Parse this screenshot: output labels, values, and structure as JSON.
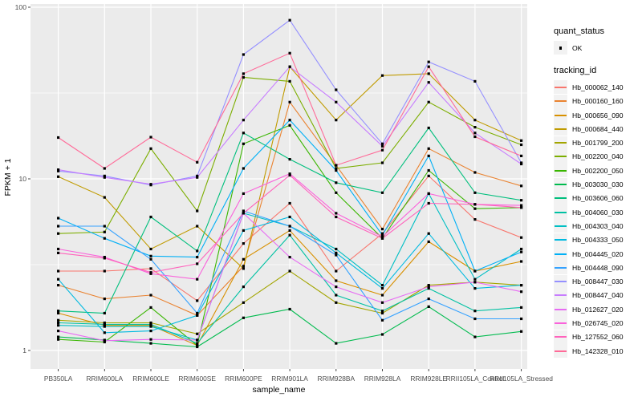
{
  "figure": {
    "background": "#FFFFFF",
    "panel_background": "#EBEBEB",
    "gridline_color": "#FFFFFF",
    "axis_text_color": "#4D4D4D",
    "axis_title_color": "#000000",
    "tick_mark_color": "#333333",
    "point_color": "#000000",
    "legend_key_background": "#F2F2F2"
  },
  "axes": {
    "x_title": "sample_name",
    "y_title": "FPKM + 1",
    "y_tick_labels": [
      "1",
      "10",
      "100"
    ],
    "y_tick_values": [
      1,
      10,
      100
    ],
    "y_minor_values": [
      3.1623,
      31.623
    ]
  },
  "legend": {
    "quant_status_title": "quant_status",
    "quant_status_items": [
      {
        "label": "OK"
      }
    ],
    "tracking_id_title": "tracking_id"
  },
  "chart_data": {
    "type": "line",
    "title": "",
    "xlabel": "sample_name",
    "ylabel": "FPKM + 1",
    "y_scale": "log10",
    "ylim": [
      0.8,
      103
    ],
    "y_ticks": [
      1,
      10,
      100
    ],
    "grid": true,
    "legend_position": "right",
    "point_shape": "small black square (quant_status = OK)",
    "categories": [
      "PB350LA",
      "RRIM600LA",
      "RRIM600LE",
      "RRIM600SE",
      "RRIM600PE",
      "RRIM901LA",
      "RRIM928BA",
      "RRIM928LA",
      "RRIM928LE",
      "RRII105LA_Control",
      "RRII105LA_Stressed"
    ],
    "series": [
      {
        "name": "Hb_000062_140",
        "color": "#F8766D",
        "quant_status": "OK",
        "values": [
          2.9,
          2.9,
          3.0,
          1.95,
          4.2,
          7.2,
          2.9,
          4.8,
          10.4,
          5.8,
          4.55
        ]
      },
      {
        "name": "Hb_000160_160",
        "color": "#EA8331",
        "quant_status": "OK",
        "values": [
          2.4,
          2.0,
          2.1,
          1.6,
          3.1,
          28,
          12.0,
          5.1,
          15.0,
          10.9,
          9.1
        ]
      },
      {
        "name": "Hb_000656_090",
        "color": "#D89000",
        "quant_status": "OK",
        "values": [
          1.65,
          1.4,
          1.4,
          1.07,
          3.4,
          5.0,
          2.55,
          2.1,
          4.3,
          2.9,
          3.3
        ]
      },
      {
        "name": "Hb_000684_440",
        "color": "#C09B00",
        "quant_status": "OK",
        "values": [
          10.3,
          7.8,
          3.9,
          5.3,
          3.0,
          45,
          22,
          40,
          41,
          22,
          16.7
        ]
      },
      {
        "name": "Hb_001799_200",
        "color": "#A3A500",
        "quant_status": "OK",
        "values": [
          1.5,
          1.45,
          1.45,
          1.25,
          1.9,
          2.9,
          1.9,
          1.65,
          2.4,
          2.5,
          2.4
        ]
      },
      {
        "name": "Hb_002200_040",
        "color": "#7CAE00",
        "quant_status": "OK",
        "values": [
          4.8,
          4.9,
          15.0,
          6.5,
          39,
          37,
          11.5,
          12.4,
          28,
          20,
          15.8
        ]
      },
      {
        "name": "Hb_002200_050",
        "color": "#39B600",
        "quant_status": "OK",
        "values": [
          1.16,
          1.12,
          1.78,
          1.07,
          16.0,
          20.5,
          8.3,
          4.5,
          11.2,
          6.7,
          6.8
        ]
      },
      {
        "name": "Hb_003030_030",
        "color": "#00BB4E",
        "quant_status": "OK",
        "values": [
          1.2,
          1.15,
          1.1,
          1.05,
          1.55,
          1.74,
          1.1,
          1.24,
          1.8,
          1.2,
          1.29
        ]
      },
      {
        "name": "Hb_003606_060",
        "color": "#00BF7D",
        "quant_status": "OK",
        "values": [
          1.7,
          1.65,
          6.0,
          3.8,
          18.5,
          13.0,
          9.5,
          8.3,
          19.8,
          8.3,
          7.5
        ]
      },
      {
        "name": "Hb_004060_030",
        "color": "#00C1A3",
        "quant_status": "OK",
        "values": [
          1.45,
          1.42,
          1.42,
          1.1,
          2.35,
          4.7,
          2.1,
          1.7,
          2.3,
          1.7,
          1.78
        ]
      },
      {
        "name": "Hb_004303_040",
        "color": "#00BFC4",
        "quant_status": "OK",
        "values": [
          1.4,
          1.38,
          1.38,
          1.15,
          6.3,
          5.3,
          3.9,
          2.4,
          8.2,
          2.6,
          3.9
        ]
      },
      {
        "name": "Hb_004333_050",
        "color": "#00BAE0",
        "quant_status": "OK",
        "values": [
          2.6,
          1.27,
          1.3,
          1.6,
          5.0,
          6.0,
          3.7,
          2.3,
          4.8,
          2.3,
          2.4
        ]
      },
      {
        "name": "Hb_004445_020",
        "color": "#00B0F6",
        "quant_status": "OK",
        "values": [
          5.9,
          4.5,
          3.55,
          3.5,
          11.5,
          22,
          11.2,
          4.7,
          13.6,
          2.9,
          3.75
        ]
      },
      {
        "name": "Hb_004448_090",
        "color": "#35A2FF",
        "quant_status": "OK",
        "values": [
          5.3,
          5.3,
          3.4,
          1.65,
          6.5,
          5.3,
          3.6,
          1.5,
          2.0,
          1.53,
          1.53
        ]
      },
      {
        "name": "Hb_008447_030",
        "color": "#9590FF",
        "quant_status": "OK",
        "values": [
          11.1,
          10.4,
          9.2,
          10.4,
          53,
          84,
          33,
          16.0,
          48,
          37,
          12.4
        ]
      },
      {
        "name": "Hb_008447_040",
        "color": "#C77CFF",
        "quant_status": "OK",
        "values": [
          11.3,
          10.2,
          9.3,
          10.2,
          22,
          45,
          28,
          15.5,
          36.5,
          18.5,
          12.2
        ]
      },
      {
        "name": "Hb_012627_020",
        "color": "#E76BF3",
        "quant_status": "OK",
        "values": [
          1.3,
          1.14,
          1.16,
          1.15,
          6.3,
          3.5,
          2.35,
          1.9,
          2.35,
          2.5,
          2.2
        ]
      },
      {
        "name": "Hb_026745_020",
        "color": "#FA62DB",
        "quant_status": "OK",
        "values": [
          3.9,
          3.5,
          2.8,
          2.6,
          8.2,
          10.7,
          6.3,
          4.6,
          8.2,
          7.1,
          7.0
        ]
      },
      {
        "name": "Hb_127552_060",
        "color": "#FF62BC",
        "quant_status": "OK",
        "values": [
          3.7,
          3.45,
          2.85,
          3.2,
          6.3,
          10.5,
          6.0,
          4.5,
          7.2,
          7.1,
          6.8
        ]
      },
      {
        "name": "Hb_142328_010",
        "color": "#FF6A98",
        "quant_status": "OK",
        "values": [
          17.4,
          11.5,
          17.5,
          12.5,
          41,
          54,
          12.0,
          14.7,
          45,
          17.6,
          13.6
        ]
      }
    ]
  }
}
